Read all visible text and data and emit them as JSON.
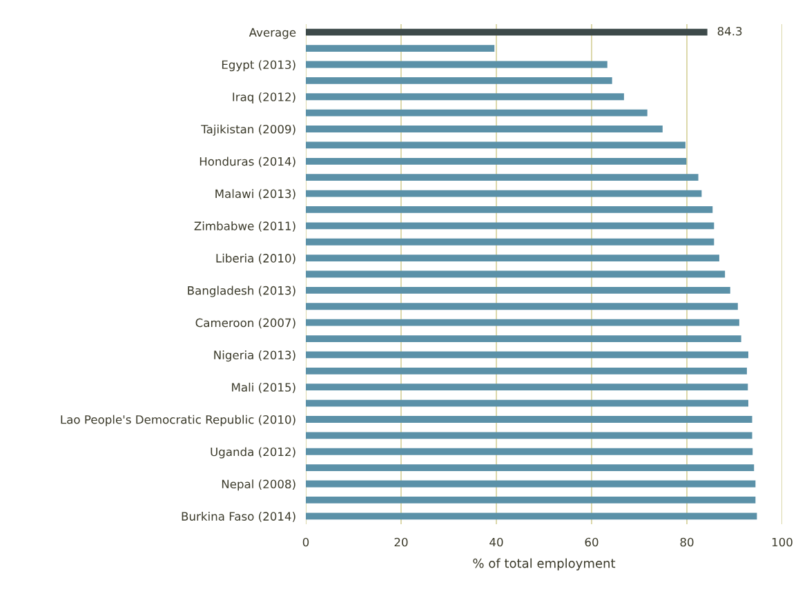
{
  "chart_data": {
    "type": "bar",
    "orientation": "horizontal",
    "xlabel": "% of total employment",
    "categories": [
      "Average",
      null,
      "Egypt (2013)",
      null,
      "Iraq (2012)",
      null,
      "Tajikistan (2009)",
      null,
      "Honduras (2014)",
      null,
      "Malawi (2013)",
      null,
      "Zimbabwe (2011)",
      null,
      "Liberia (2010)",
      null,
      "Bangladesh (2013)",
      null,
      "Cameroon (2007)",
      null,
      "Nigeria (2013)",
      null,
      "Mali (2015)",
      null,
      "Lao People's Democratic Republic (2010)",
      null,
      "Uganda (2012)",
      null,
      "Nepal (2008)",
      null,
      "Burkina Faso (2014)"
    ],
    "values": [
      84.3,
      39.6,
      63.3,
      64.3,
      66.8,
      71.7,
      74.9,
      79.7,
      79.9,
      82.4,
      83.1,
      85.4,
      85.7,
      85.7,
      86.8,
      88.0,
      89.1,
      90.7,
      91.0,
      91.4,
      92.9,
      92.6,
      92.8,
      92.9,
      93.7,
      93.7,
      93.8,
      94.1,
      94.4,
      94.4,
      94.7
    ],
    "colors": [
      "#3d4a4a",
      "#5b91a8",
      "#5b91a8",
      "#5b91a8",
      "#5b91a8",
      "#5b91a8",
      "#5b91a8",
      "#5b91a8",
      "#5b91a8",
      "#5b91a8",
      "#5b91a8",
      "#5b91a8",
      "#5b91a8",
      "#5b91a8",
      "#5b91a8",
      "#5b91a8",
      "#5b91a8",
      "#5b91a8",
      "#5b91a8",
      "#5b91a8",
      "#5b91a8",
      "#5b91a8",
      "#5b91a8",
      "#5b91a8",
      "#5b91a8",
      "#5b91a8",
      "#5b91a8",
      "#5b91a8",
      "#5b91a8",
      "#5b91a8",
      "#5b91a8"
    ],
    "value_labels": [
      "84.3",
      null,
      null,
      null,
      null,
      null,
      null,
      null,
      null,
      null,
      null,
      null,
      null,
      null,
      null,
      null,
      null,
      null,
      null,
      null,
      null,
      null,
      null,
      null,
      null,
      null,
      null,
      null,
      null,
      null,
      null
    ],
    "xlim": [
      0,
      100
    ],
    "xticks": [
      0,
      20,
      40,
      60,
      80,
      100
    ],
    "grid": "x",
    "legend": false
  }
}
